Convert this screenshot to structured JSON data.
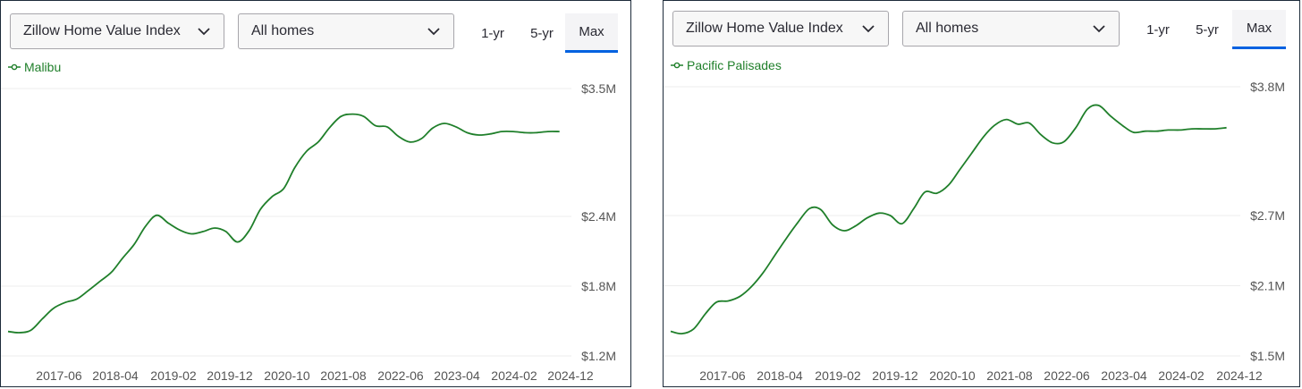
{
  "panels": [
    {
      "metric_dropdown": "Zillow Home Value Index",
      "type_dropdown": "All homes",
      "range_tabs": [
        "1-yr",
        "5-yr",
        "Max"
      ],
      "active_tab": "Max",
      "legend": "Malibu"
    },
    {
      "metric_dropdown": "Zillow Home Value Index",
      "type_dropdown": "All homes",
      "range_tabs": [
        "1-yr",
        "5-yr",
        "Max"
      ],
      "active_tab": "Max",
      "legend": "Pacific Palisades"
    }
  ],
  "chart_data": [
    {
      "type": "line",
      "x_ticks": [
        "2017-06",
        "2018-04",
        "2019-02",
        "2019-12",
        "2020-10",
        "2021-08",
        "2022-06",
        "2023-04",
        "2024-02",
        "2024-12"
      ],
      "y_ticks": [
        "$3.5M",
        "$2.4M",
        "$1.8M",
        "$1.2M"
      ],
      "y_tick_values": [
        3.5,
        2.4,
        1.8,
        1.2
      ],
      "ylim": [
        1.2,
        3.5
      ],
      "xlim": [
        2016.92,
        2025.08
      ],
      "grid": true,
      "series": [
        {
          "name": "Malibu",
          "color": "#1f7f2a",
          "x": [
            2016.92,
            2017.08,
            2017.25,
            2017.42,
            2017.58,
            2017.75,
            2017.92,
            2018.08,
            2018.25,
            2018.42,
            2018.58,
            2018.75,
            2018.92,
            2019.08,
            2019.25,
            2019.42,
            2019.58,
            2019.75,
            2019.92,
            2020.08,
            2020.25,
            2020.42,
            2020.58,
            2020.75,
            2020.92,
            2021.08,
            2021.25,
            2021.42,
            2021.58,
            2021.75,
            2021.92,
            2022.08,
            2022.25,
            2022.42,
            2022.58,
            2022.75,
            2022.92,
            2023.08,
            2023.25,
            2023.42,
            2023.58,
            2023.75,
            2023.92,
            2024.08,
            2024.25,
            2024.42,
            2024.58,
            2024.75,
            2024.92
          ],
          "values": [
            1.41,
            1.4,
            1.42,
            1.52,
            1.61,
            1.66,
            1.69,
            1.76,
            1.84,
            1.92,
            2.04,
            2.16,
            2.32,
            2.41,
            2.34,
            2.28,
            2.25,
            2.27,
            2.3,
            2.27,
            2.18,
            2.28,
            2.46,
            2.57,
            2.64,
            2.82,
            2.96,
            3.04,
            3.16,
            3.26,
            3.28,
            3.26,
            3.18,
            3.17,
            3.09,
            3.04,
            3.07,
            3.16,
            3.2,
            3.17,
            3.12,
            3.1,
            3.11,
            3.13,
            3.13,
            3.12,
            3.12,
            3.13,
            3.13
          ]
        }
      ]
    },
    {
      "type": "line",
      "x_ticks": [
        "2017-06",
        "2018-04",
        "2019-02",
        "2019-12",
        "2020-10",
        "2021-08",
        "2022-06",
        "2023-04",
        "2024-02",
        "2024-12"
      ],
      "y_ticks": [
        "$3.8M",
        "$2.7M",
        "$2.1M",
        "$1.5M"
      ],
      "y_tick_values": [
        3.8,
        2.7,
        2.1,
        1.5
      ],
      "ylim": [
        1.5,
        3.8
      ],
      "xlim": [
        2016.92,
        2025.08
      ],
      "grid": true,
      "series": [
        {
          "name": "Pacific Palisades",
          "color": "#1f7f2a",
          "x": [
            2016.92,
            2017.08,
            2017.25,
            2017.42,
            2017.58,
            2017.75,
            2017.92,
            2018.08,
            2018.25,
            2018.42,
            2018.58,
            2018.75,
            2018.92,
            2019.08,
            2019.25,
            2019.42,
            2019.58,
            2019.75,
            2019.92,
            2020.08,
            2020.25,
            2020.42,
            2020.58,
            2020.75,
            2020.92,
            2021.08,
            2021.25,
            2021.42,
            2021.58,
            2021.75,
            2021.92,
            2022.08,
            2022.25,
            2022.42,
            2022.58,
            2022.75,
            2022.92,
            2023.08,
            2023.25,
            2023.42,
            2023.58,
            2023.75,
            2023.92,
            2024.08,
            2024.25,
            2024.42,
            2024.58,
            2024.75,
            2024.92
          ],
          "values": [
            1.71,
            1.69,
            1.73,
            1.86,
            1.96,
            1.97,
            2.01,
            2.09,
            2.21,
            2.36,
            2.5,
            2.64,
            2.76,
            2.75,
            2.62,
            2.57,
            2.61,
            2.68,
            2.72,
            2.7,
            2.63,
            2.76,
            2.9,
            2.89,
            2.96,
            3.09,
            3.23,
            3.37,
            3.47,
            3.52,
            3.48,
            3.49,
            3.39,
            3.32,
            3.33,
            3.45,
            3.61,
            3.64,
            3.55,
            3.47,
            3.41,
            3.42,
            3.42,
            3.43,
            3.43,
            3.44,
            3.44,
            3.44,
            3.45
          ]
        }
      ]
    }
  ]
}
